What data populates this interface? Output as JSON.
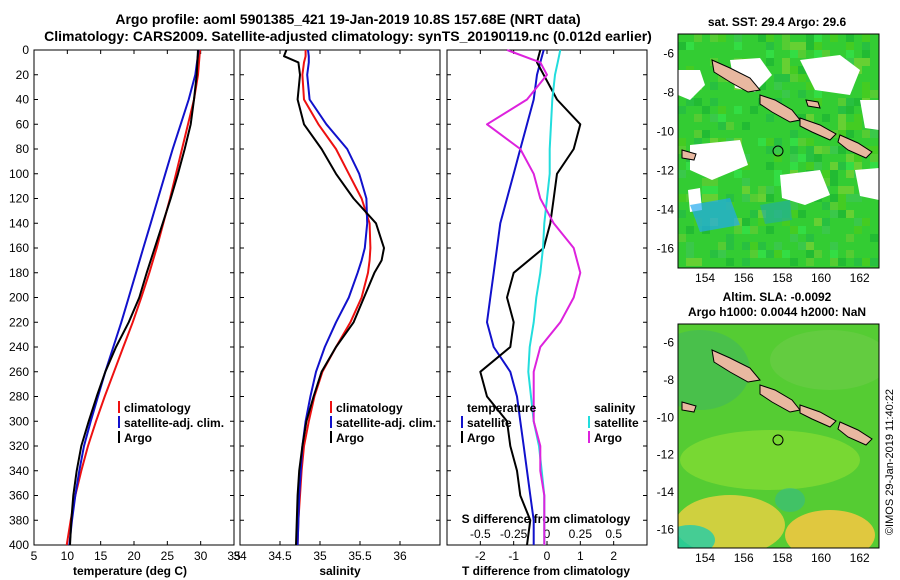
{
  "figure": {
    "title_line1": "Argo profile: aoml 5901385_421 19-Jan-2019 10.8S 157.68E (NRT data)",
    "title_line2": "Climatology: CARS2009. Satellite-adjusted climatology: synTS_20190119.nc (0.012d earlier)",
    "timestamp": "©IMOS 29-Jan-2019 11:40:22",
    "colors": {
      "climatology": "#ee1111",
      "satellite": "#1111cc",
      "argo": "#000000",
      "salinity_sat": "#22dddd",
      "salinity_argo": "#dd22dd"
    }
  },
  "chart_data": [
    {
      "type": "line",
      "id": "temperature",
      "xlabel": "temperature (deg C)",
      "ylabel": "depth",
      "xlim": [
        5,
        35
      ],
      "ylim": [
        0,
        400
      ],
      "y_inverted": true,
      "x_ticks": [
        "5",
        "10",
        "15",
        "20",
        "25",
        "30",
        "35"
      ],
      "y_ticks": [
        "0",
        "20",
        "40",
        "60",
        "80",
        "100",
        "120",
        "140",
        "160",
        "180",
        "200",
        "220",
        "240",
        "260",
        "280",
        "300",
        "320",
        "340",
        "360",
        "380",
        "400"
      ],
      "legend": [
        "climatology",
        "satellite-adj. clim.",
        "Argo"
      ],
      "depth": [
        0,
        20,
        40,
        60,
        80,
        100,
        120,
        140,
        160,
        180,
        200,
        220,
        240,
        260,
        280,
        300,
        320,
        340,
        360,
        380,
        400
      ],
      "series": [
        {
          "name": "climatology",
          "values": [
            29.9,
            29.6,
            29.0,
            28.1,
            27.2,
            26.3,
            25.4,
            24.4,
            23.4,
            22.3,
            21.1,
            19.8,
            18.4,
            17.0,
            15.6,
            14.3,
            13.1,
            12.1,
            11.2,
            10.5,
            9.9
          ]
        },
        {
          "name": "satellite-adj. clim.",
          "values": [
            29.7,
            29.2,
            28.2,
            27.0,
            25.8,
            24.7,
            23.6,
            22.5,
            21.4,
            20.3,
            19.2,
            18.1,
            16.9,
            15.7,
            14.6,
            13.5,
            12.5,
            11.8,
            11.2,
            10.7,
            10.3
          ]
        },
        {
          "name": "Argo",
          "values": [
            29.6,
            29.4,
            29.0,
            28.5,
            27.6,
            26.6,
            25.5,
            24.3,
            23.1,
            21.9,
            20.8,
            19.2,
            17.3,
            15.7,
            14.4,
            13.2,
            12.1,
            11.4,
            10.9,
            10.6,
            10.4
          ]
        }
      ]
    },
    {
      "type": "line",
      "id": "salinity",
      "xlabel": "salinity",
      "xlim": [
        34,
        36.5
      ],
      "ylim": [
        0,
        400
      ],
      "y_inverted": true,
      "x_ticks": [
        "34",
        "34.5",
        "35",
        "35.5",
        "36"
      ],
      "legend": [
        "climatology",
        "satellite-adj. clim.",
        "Argo"
      ],
      "depth": [
        0,
        5,
        10,
        20,
        40,
        60,
        80,
        100,
        120,
        140,
        160,
        170,
        180,
        200,
        220,
        240,
        260,
        280,
        300,
        320,
        340,
        360,
        380,
        400
      ],
      "series": [
        {
          "name": "climatology",
          "values": [
            34.82,
            34.82,
            34.8,
            34.78,
            34.8,
            34.98,
            35.2,
            35.36,
            35.52,
            35.62,
            35.63,
            35.62,
            35.6,
            35.52,
            35.38,
            35.2,
            35.03,
            34.93,
            34.86,
            34.8,
            34.77,
            34.75,
            34.73,
            34.72
          ]
        },
        {
          "name": "satellite-adj. clim.",
          "values": [
            34.85,
            34.86,
            34.86,
            34.84,
            34.87,
            35.08,
            35.34,
            35.49,
            35.58,
            35.59,
            35.56,
            35.52,
            35.47,
            35.36,
            35.2,
            35.06,
            34.95,
            34.88,
            34.82,
            34.78,
            34.76,
            34.74,
            34.73,
            34.72
          ]
        },
        {
          "name": "Argo",
          "values": [
            34.58,
            34.55,
            34.73,
            34.75,
            34.72,
            34.8,
            35.02,
            35.2,
            35.42,
            35.7,
            35.8,
            35.77,
            35.68,
            35.55,
            35.42,
            35.2,
            35.02,
            34.92,
            34.83,
            34.78,
            34.74,
            34.72,
            34.71,
            34.7
          ]
        }
      ]
    },
    {
      "type": "line",
      "id": "difference",
      "xlabel": "T difference from climatology",
      "xlabel_top": "S difference from climatology",
      "xlim": [
        -3,
        3
      ],
      "ylim": [
        0,
        400
      ],
      "y_inverted": true,
      "x_ticks": [
        "-2",
        "-1",
        "0",
        "1",
        "2"
      ],
      "x_ticks_secondary": [
        "-0.5",
        "-0.25",
        "0",
        "0.25",
        "0.5"
      ],
      "legend_left_title": "temperature",
      "legend_right_title": "salinity",
      "legend_left": [
        "satellite",
        "Argo"
      ],
      "legend_right": [
        "satellite",
        "Argo"
      ],
      "depth": [
        0,
        10,
        20,
        40,
        60,
        80,
        100,
        120,
        140,
        160,
        180,
        200,
        220,
        240,
        260,
        280,
        300,
        320,
        340,
        360,
        380,
        400
      ],
      "series": [
        {
          "name": "temperature satellite",
          "values": [
            -0.1,
            -0.2,
            -0.3,
            -0.4,
            -0.6,
            -0.8,
            -1.0,
            -1.2,
            -1.4,
            -1.5,
            -1.6,
            -1.7,
            -1.8,
            -1.6,
            -1.1,
            -0.9,
            -0.8,
            -0.7,
            -0.6,
            -0.5,
            -0.4,
            -0.4
          ]
        },
        {
          "name": "temperature Argo",
          "values": [
            -0.2,
            -0.3,
            -0.1,
            0.3,
            1.0,
            0.8,
            0.3,
            0.2,
            0.1,
            -0.1,
            -1.0,
            -1.2,
            -1.0,
            -1.1,
            -2.0,
            -1.8,
            -1.2,
            -1.1,
            -0.9,
            -0.8,
            -0.5,
            -0.6
          ]
        },
        {
          "name": "salinity satellite",
          "values": [
            0.1,
            0.08,
            0.06,
            0.04,
            0.03,
            0.02,
            0.02,
            0.0,
            -0.02,
            -0.03,
            -0.05,
            -0.08,
            -0.1,
            -0.13,
            -0.14,
            -0.12,
            -0.1,
            -0.06,
            -0.04,
            -0.02,
            -0.02,
            -0.02
          ]
        },
        {
          "name": "salinity Argo",
          "values": [
            -0.3,
            -0.05,
            0.0,
            -0.15,
            -0.45,
            -0.2,
            -0.1,
            -0.05,
            0.05,
            0.2,
            0.25,
            0.2,
            0.1,
            -0.05,
            -0.1,
            -0.1,
            -0.1,
            -0.05,
            -0.05,
            -0.02,
            -0.02,
            -0.02
          ]
        }
      ]
    },
    {
      "type": "heatmap",
      "id": "sst_map",
      "title": "sat. SST: 29.4 Argo: 29.6",
      "x_ticks": [
        "154",
        "156",
        "158",
        "160",
        "162"
      ],
      "y_ticks": [
        "-6",
        "-8",
        "-10",
        "-12",
        "-14",
        "-16"
      ],
      "xlim": [
        152.6,
        163.0
      ],
      "ylim": [
        -17.0,
        -5.0
      ],
      "argo_position": {
        "lon": 157.68,
        "lat": -10.8
      }
    },
    {
      "type": "heatmap",
      "id": "sla_map",
      "title_line1": "Altim. SLA: -0.0092",
      "title_line2": "Argo h1000: 0.0044 h2000: NaN",
      "x_ticks": [
        "154",
        "156",
        "158",
        "160",
        "162"
      ],
      "y_ticks": [
        "-6",
        "-8",
        "-10",
        "-12",
        "-14",
        "-16"
      ],
      "xlim": [
        152.6,
        163.0
      ],
      "ylim": [
        -17.0,
        -5.0
      ],
      "argo_position": {
        "lon": 157.68,
        "lat": -10.8
      }
    }
  ]
}
